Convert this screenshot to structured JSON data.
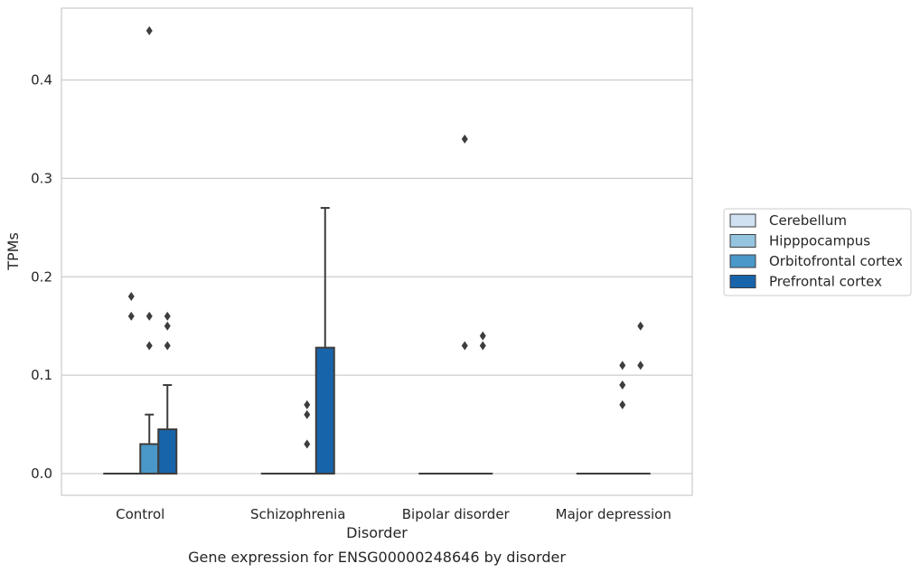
{
  "chart_data": {
    "type": "box",
    "caption": "Gene expression for ENSG00000248646 by disorder",
    "xlabel": "Disorder",
    "ylabel": "TPMs",
    "ylim": [
      -0.022,
      0.473
    ],
    "yticks": [
      0.0,
      0.1,
      0.2,
      0.3,
      0.4
    ],
    "ytick_labels": [
      "0.0",
      "0.1",
      "0.2",
      "0.3",
      "0.4"
    ],
    "grid": "horizontal",
    "legend_position": "right",
    "categories": [
      "Control",
      "Schizophrenia",
      "Bipolar disorder",
      "Major depression"
    ],
    "series": [
      {
        "name": "Cerebellum",
        "color": "#d0e1f2",
        "boxes": [
          {
            "q1": 0,
            "median": 0,
            "q3": 0,
            "whisker_low": 0,
            "whisker_high": 0,
            "outliers": []
          },
          {
            "q1": 0,
            "median": 0,
            "q3": 0,
            "whisker_low": 0,
            "whisker_high": 0,
            "outliers": []
          },
          {
            "q1": 0,
            "median": 0,
            "q3": 0,
            "whisker_low": 0,
            "whisker_high": 0,
            "outliers": []
          },
          {
            "q1": 0,
            "median": 0,
            "q3": 0,
            "whisker_low": 0,
            "whisker_high": 0,
            "outliers": []
          }
        ]
      },
      {
        "name": "Hipppocampus",
        "color": "#94c4df",
        "boxes": [
          {
            "q1": 0,
            "median": 0,
            "q3": 0,
            "whisker_low": 0,
            "whisker_high": 0,
            "outliers": [
              0.18,
              0.16
            ]
          },
          {
            "q1": 0,
            "median": 0,
            "q3": 0,
            "whisker_low": 0,
            "whisker_high": 0,
            "outliers": []
          },
          {
            "q1": 0,
            "median": 0,
            "q3": 0,
            "whisker_low": 0,
            "whisker_high": 0,
            "outliers": []
          },
          {
            "q1": 0,
            "median": 0,
            "q3": 0,
            "whisker_low": 0,
            "whisker_high": 0,
            "outliers": []
          }
        ]
      },
      {
        "name": "Orbitofrontal cortex",
        "color": "#4a98c9",
        "boxes": [
          {
            "q1": 0,
            "median": 0,
            "q3": 0.03,
            "whisker_low": 0,
            "whisker_high": 0.06,
            "outliers": [
              0.45,
              0.16,
              0.13
            ]
          },
          {
            "q1": 0,
            "median": 0,
            "q3": 0,
            "whisker_low": 0,
            "whisker_high": 0,
            "outliers": [
              0.07,
              0.06,
              0.03
            ]
          },
          {
            "q1": 0,
            "median": 0,
            "q3": 0,
            "whisker_low": 0,
            "whisker_high": 0,
            "outliers": [
              0.34,
              0.13
            ]
          },
          {
            "q1": 0,
            "median": 0,
            "q3": 0,
            "whisker_low": 0,
            "whisker_high": 0,
            "outliers": [
              0.11,
              0.09,
              0.07
            ]
          }
        ]
      },
      {
        "name": "Prefrontal cortex",
        "color": "#1764ab",
        "boxes": [
          {
            "q1": 0,
            "median": 0,
            "q3": 0.045,
            "whisker_low": 0,
            "whisker_high": 0.09,
            "outliers": [
              0.16,
              0.15,
              0.13
            ]
          },
          {
            "q1": 0,
            "median": 0,
            "q3": 0.128,
            "whisker_low": 0,
            "whisker_high": 0.27,
            "outliers": []
          },
          {
            "q1": 0,
            "median": 0,
            "q3": 0,
            "whisker_low": 0,
            "whisker_high": 0,
            "outliers": [
              0.14,
              0.13
            ]
          },
          {
            "q1": 0,
            "median": 0,
            "q3": 0,
            "whisker_low": 0,
            "whisker_high": 0,
            "outliers": [
              0.15,
              0.11
            ]
          }
        ]
      }
    ]
  }
}
